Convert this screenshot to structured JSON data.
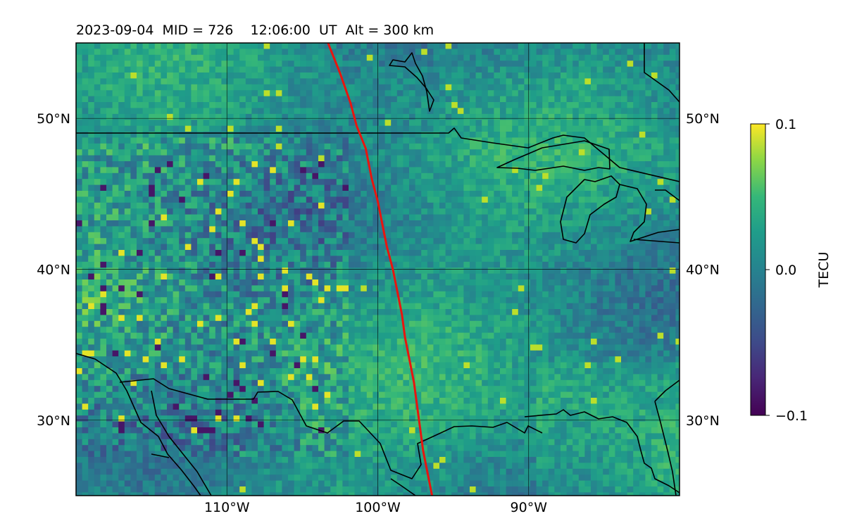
{
  "title": "2023-09-04  MID = 726    12:06:00  UT  Alt = 300 km",
  "map": {
    "lat_range": [
      25,
      55
    ],
    "lon_range": [
      -120,
      -80
    ],
    "lat_ticks": [
      {
        "value": 50,
        "label": "50°N"
      },
      {
        "value": 40,
        "label": "40°N"
      },
      {
        "value": 30,
        "label": "30°N"
      }
    ],
    "lon_ticks": [
      {
        "value": -110,
        "label": "110°W"
      },
      {
        "value": -100,
        "label": "100°W"
      },
      {
        "value": -90,
        "label": "90°W"
      }
    ],
    "gridlines": true,
    "colormap": "viridis",
    "track_color": "#e8150f",
    "coast_color": "#000000",
    "track": [
      [
        -103.3,
        55
      ],
      [
        -102.5,
        53
      ],
      [
        -101.8,
        51
      ],
      [
        -101.4,
        49.5
      ],
      [
        -100.8,
        48
      ],
      [
        -100.4,
        46
      ],
      [
        -100.0,
        44.5
      ],
      [
        -99.7,
        43
      ],
      [
        -99.4,
        41.5
      ],
      [
        -99.0,
        40
      ],
      [
        -98.7,
        38.5
      ],
      [
        -98.4,
        37
      ],
      [
        -98.2,
        35.5
      ],
      [
        -97.9,
        34
      ],
      [
        -97.6,
        32.5
      ],
      [
        -97.4,
        31
      ],
      [
        -97.2,
        29.5
      ],
      [
        -97.0,
        28
      ],
      [
        -96.7,
        26.5
      ],
      [
        -96.4,
        25
      ]
    ]
  },
  "colorbar": {
    "label": "TECU",
    "min": -0.1,
    "max": 0.1,
    "ticks": [
      {
        "value": 0.1,
        "label": "0.1"
      },
      {
        "value": 0.0,
        "label": "0.0"
      },
      {
        "value": -0.1,
        "label": "−0.1"
      }
    ]
  }
}
